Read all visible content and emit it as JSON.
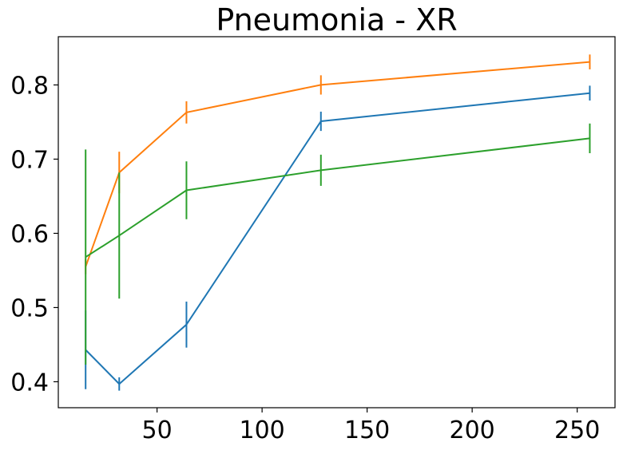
{
  "chart_data": {
    "type": "line",
    "title": "Pneumonia - XR",
    "xlabel": "",
    "ylabel": "",
    "xlim": [
      3,
      268
    ],
    "ylim": [
      0.365,
      0.865
    ],
    "x_ticks": [
      50,
      100,
      150,
      200,
      250
    ],
    "x_tick_labels": [
      "50",
      "100",
      "150",
      "200",
      "250"
    ],
    "y_ticks": [
      0.4,
      0.5,
      0.6,
      0.7,
      0.8
    ],
    "y_tick_labels": [
      "0.4",
      "0.5",
      "0.6",
      "0.7",
      "0.8"
    ],
    "grid": false,
    "legend": false,
    "series": [
      {
        "color": "#1f77b4",
        "x": [
          16,
          32,
          64,
          128,
          256
        ],
        "values": [
          0.443,
          0.397,
          0.477,
          0.751,
          0.789
        ],
        "errors": [
          0.053,
          0.009,
          0.031,
          0.013,
          0.01
        ]
      },
      {
        "color": "#ff7f0e",
        "x": [
          16,
          32,
          64,
          128,
          256
        ],
        "values": [
          0.555,
          0.682,
          0.763,
          0.8,
          0.831
        ],
        "errors": [
          0.01,
          0.028,
          0.015,
          0.013,
          0.01
        ]
      },
      {
        "color": "#2ca02c",
        "x": [
          16,
          32,
          64,
          128,
          256
        ],
        "values": [
          0.568,
          0.597,
          0.658,
          0.685,
          0.728
        ],
        "errors": [
          0.145,
          0.085,
          0.039,
          0.021,
          0.02
        ]
      }
    ]
  }
}
